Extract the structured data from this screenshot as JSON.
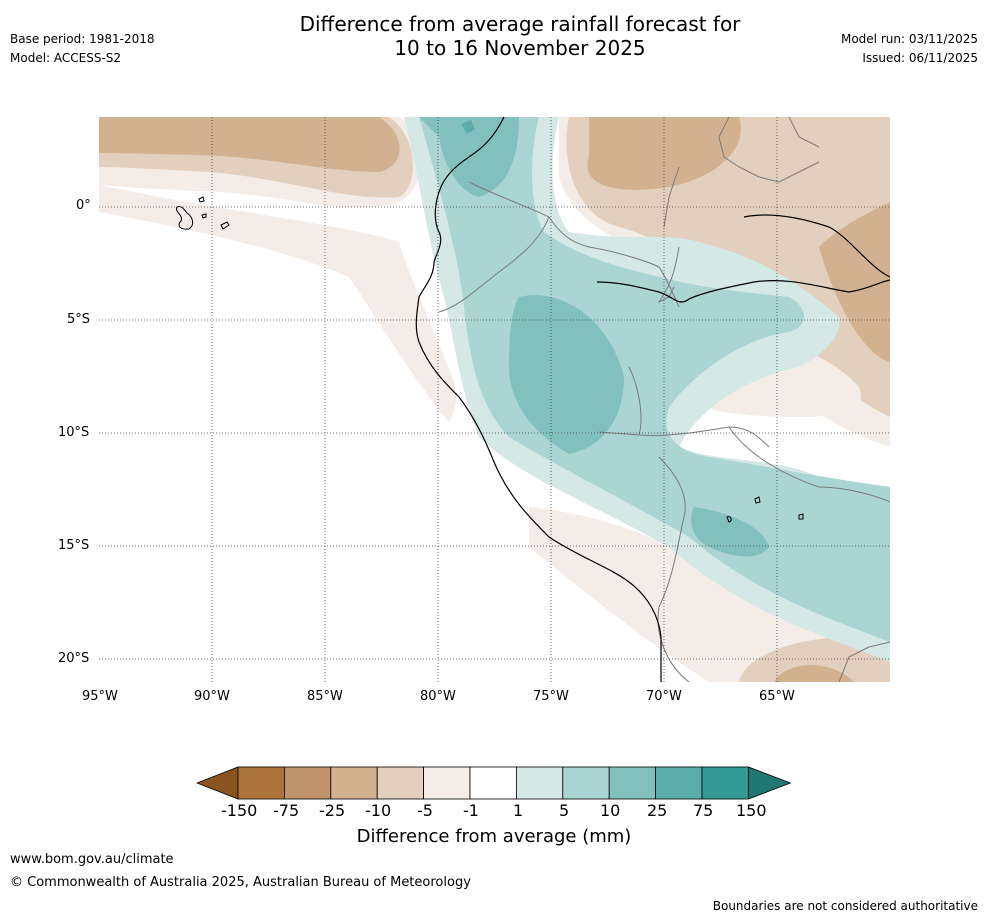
{
  "header": {
    "title_line1": "Difference from average rainfall forecast for",
    "title_line2": "10 to 16 November 2025",
    "base_period": "Base period: 1981-2018",
    "model": "Model: ACCESS-S2",
    "model_run": "Model run: 03/11/2025",
    "issued": "Issued: 06/11/2025"
  },
  "map": {
    "lat_labels": [
      "0°",
      "5°S",
      "10°S",
      "15°S",
      "20°S"
    ],
    "lon_labels": [
      "95°W",
      "90°W",
      "85°W",
      "80°W",
      "75°W",
      "70°W",
      "65°W"
    ]
  },
  "colorbar": {
    "label": "Difference from average (mm)",
    "ticks": [
      "-150",
      "-75",
      "-25",
      "-10",
      "-5",
      "-1",
      "1",
      "5",
      "10",
      "25",
      "75",
      "150"
    ],
    "colors": [
      "#8a5420",
      "#ad733b",
      "#c0946a",
      "#d2b190",
      "#e3cfbd",
      "#f4ece6",
      "#ffffff",
      "#d4e8e6",
      "#aad5d3",
      "#82c0bd",
      "#5badaa",
      "#339a96",
      "#1f7874"
    ]
  },
  "footer": {
    "url": "www.bom.gov.au/climate",
    "copyright": "© Commonwealth of Australia 2025, Australian Bureau of Meteorology",
    "disclaimer": "Boundaries are not considered authoritative"
  }
}
